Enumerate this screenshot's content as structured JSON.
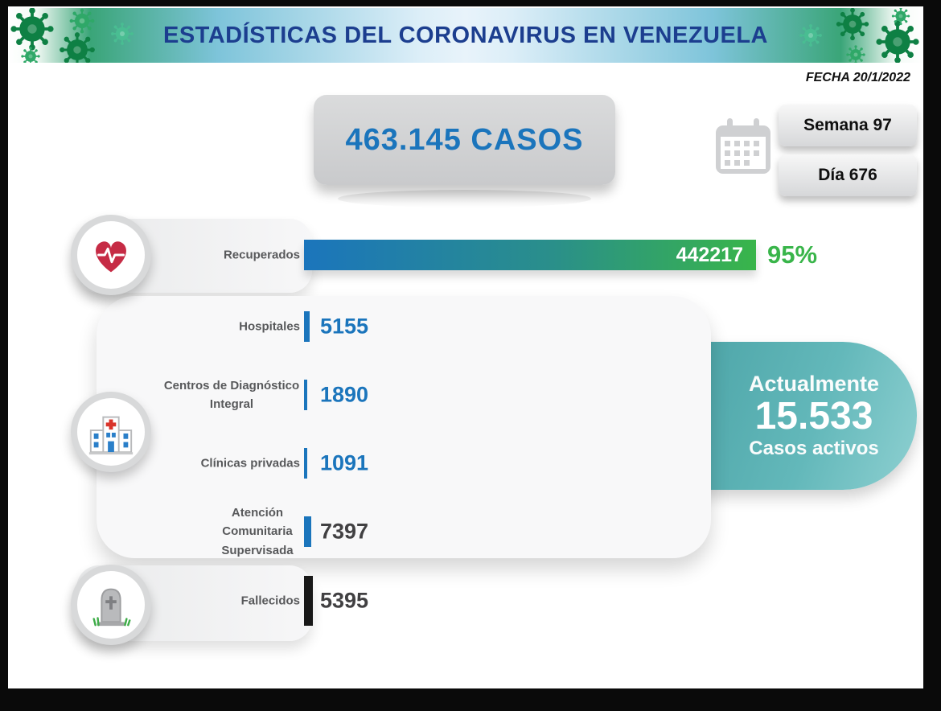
{
  "header": {
    "title": "ESTADÍSTICAS DEL CORONAVIRUS EN VENEZUELA",
    "date": "FECHA 20/1/2022"
  },
  "total": {
    "text": "463.145 CASOS"
  },
  "badges": {
    "week": "Semana 97",
    "day": "Día 676"
  },
  "active": {
    "line1": "Actualmente",
    "value": "15.533",
    "line2": "Casos activos"
  },
  "icons": {
    "header_left": "virus-icons",
    "header_right": "virus-icons",
    "calendar": "calendar-icon",
    "recuperados": "heart-ecg-icon",
    "centros_salud": "hospital-building-icon",
    "fallecidos": "tombstone-icon"
  },
  "colors": {
    "bar_blue": "#1b75bc",
    "bar_green": "#39b54a",
    "value_blue": "#1b75bc",
    "value_dark": "#414042",
    "percent_green": "#39b54a",
    "active_teal": "#63b8ba",
    "title_navy": "#1c3e8f",
    "fallecidos_bar": "#191919"
  },
  "chart_data": {
    "type": "bar",
    "orientation": "horizontal",
    "title": "ESTADÍSTICAS DEL CORONAVIRUS EN VENEZUELA",
    "xlim": [
      0,
      442217
    ],
    "categories": [
      "Recuperados",
      "Hospitales",
      "Centros de Diagnóstico Integral",
      "Clínicas privadas",
      "Atención Comunitaria Supervisada",
      "Fallecidos"
    ],
    "values": [
      442217,
      5155,
      1890,
      1091,
      7397,
      5395
    ],
    "rows": [
      {
        "label": "Recuperados",
        "value": 442217,
        "display": "442217",
        "percent": "95%"
      },
      {
        "label": "Hospitales",
        "value": 5155,
        "display": "5155"
      },
      {
        "label": "Centros de Diagnóstico Integral",
        "value": 1890,
        "display": "1890"
      },
      {
        "label": "Clínicas privadas",
        "value": 1091,
        "display": "1091"
      },
      {
        "label": "Atención Comunitaria Supervisada",
        "value": 7397,
        "display": "7397"
      },
      {
        "label": "Fallecidos",
        "value": 5395,
        "display": "5395"
      }
    ]
  }
}
